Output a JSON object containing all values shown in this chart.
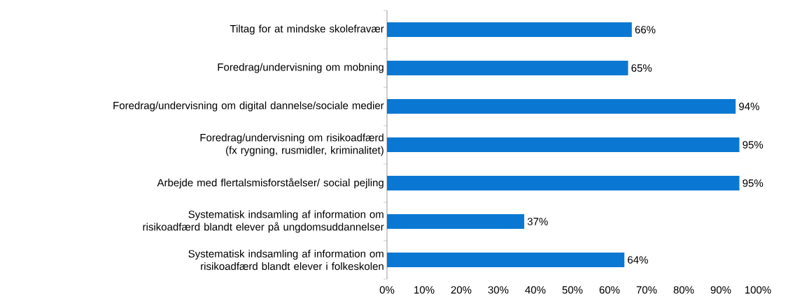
{
  "chart_data": {
    "type": "bar",
    "orientation": "horizontal",
    "categories": [
      "Tiltag for at mindske skolefravær",
      "Foredrag/undervisning om mobning",
      "Foredrag/undervisning om digital dannelse/sociale medier",
      "Foredrag/undervisning om risikoadfærd (fx rygning, rusmidler, kriminalitet)",
      "Arbejde med flertalsmisforståelser/ social pejling",
      "Systematisk indsamling af information om risikoadfærd blandt elever på ungdomsuddannelser",
      "Systematisk indsamling af information om risikoadfærd blandt elever i folkeskolen"
    ],
    "values": [
      66,
      65,
      94,
      95,
      95,
      37,
      64
    ],
    "value_labels": [
      "66%",
      "65%",
      "94%",
      "95%",
      "95%",
      "37%",
      "64%"
    ],
    "color": "#0a78d2",
    "xlim": [
      0,
      100
    ],
    "xticks": [
      {
        "value": 0,
        "label": "0%"
      },
      {
        "value": 10,
        "label": "10%"
      },
      {
        "value": 20,
        "label": "20%"
      },
      {
        "value": 30,
        "label": "30%"
      },
      {
        "value": 40,
        "label": "40%"
      },
      {
        "value": 50,
        "label": "50%"
      },
      {
        "value": 60,
        "label": "60%"
      },
      {
        "value": 70,
        "label": "70%"
      },
      {
        "value": 80,
        "label": "80%"
      },
      {
        "value": 90,
        "label": "90%"
      },
      {
        "value": 100,
        "label": "100%"
      }
    ]
  }
}
